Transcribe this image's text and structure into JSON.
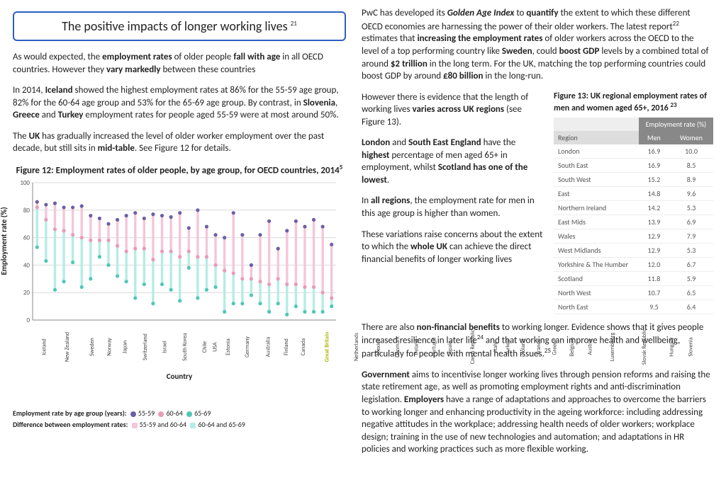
{
  "page_title": "The positive impacts of longer working lives",
  "title_sup": "21",
  "left_paras": {
    "p1": "As would expected, the <b>employment rates</b> of older people <b>fall with age</b> in all OECD countries.  However they <b>vary markedly</b> between these countries",
    "p2": "In 2014, <b>Iceland</b> showed the highest employment rates at 86% for the 55-59 age group, 82% for the 60-64 age group and 53% for the 65-69 age group.  By contrast, in <b>Slovenia</b>, <b>Greece</b> and <b>Turkey</b> employment rates for people aged 55-59 were at most  around 50%.",
    "p3": "The <b>UK</b> has gradually increased the level of older worker employment over the past decade, but still sits in <b>mid-table</b>. See Figure 12 for details."
  },
  "figure12": {
    "title": "Figure 12: Employment rates of older people, by age group, for OECD countries, 2014",
    "sup": "5",
    "ylabel": "Employment rate (%)",
    "xlabel": "Country",
    "ylim": [
      0,
      100
    ],
    "ytick_step": 20,
    "grid_color": "#d9d9d9",
    "axis_color": "#888",
    "colors": {
      "dot_55_59": "#6b5fa8",
      "dot_60_64": "#e89bb8",
      "dot_65_69": "#4fc7b5",
      "bar_55_60": "#f5c6d9",
      "bar_60_65": "#b4ede5"
    },
    "highlight_country": "Great Britain",
    "countries": [
      "Iceland",
      "New Zealand",
      "Sweden",
      "Norway",
      "Japan",
      "Switzerland",
      "Israel",
      "South Korea",
      "Chile",
      "USA",
      "Estonia",
      "Germany",
      "Australia",
      "Finland",
      "Canada",
      "Great Britain",
      "Netherlands",
      "Mexico",
      "Denmark",
      "Ireland",
      "Portugal",
      "Spain",
      "Czech Republic",
      "Italy",
      "Turkey",
      "Poland",
      "France",
      "Greece",
      "Belgium",
      "Austria",
      "Luxembourg",
      "Slovak Republic",
      "Hungary",
      "Slovenia"
    ],
    "series_55_59": [
      86,
      84,
      85,
      82,
      82,
      83,
      76,
      74,
      70,
      73,
      76,
      78,
      74,
      77,
      76,
      75,
      78,
      67,
      80,
      68,
      62,
      60,
      78,
      62,
      40,
      62,
      72,
      52,
      65,
      72,
      68,
      73,
      68,
      55
    ],
    "series_60_64": [
      82,
      73,
      66,
      65,
      62,
      60,
      58,
      58,
      58,
      54,
      50,
      52,
      52,
      44,
      50,
      50,
      46,
      50,
      46,
      46,
      40,
      36,
      34,
      30,
      30,
      28,
      26,
      30,
      26,
      26,
      24,
      24,
      20,
      16
    ],
    "series_65_69": [
      53,
      43,
      22,
      28,
      42,
      24,
      30,
      46,
      40,
      32,
      28,
      16,
      26,
      12,
      26,
      22,
      14,
      38,
      16,
      22,
      24,
      6,
      12,
      12,
      18,
      12,
      6,
      12,
      4,
      10,
      6,
      6,
      6,
      10
    ]
  },
  "legend": {
    "l1": "Employment rate by age group (years):",
    "g1": "55-59",
    "g2": "60-64",
    "g3": "65-69",
    "l2": "Difference between employment rates:",
    "d1": "55-59 and 60-64",
    "d2": "60-64 and 65-69"
  },
  "right_paras": {
    "p1": "PwC has developed its <b><i>Golden Age Index</i></b> to <b>quantify</b> the extent to which these different OECD economies are harnessing the power of their older workers.  The latest report<sup>22</sup> estimates that <b>increasing the employment rates</b> of older workers across the OECD to the level of a top performing country like <b>Sweden</b>, could <b>boost GDP</b> levels by a combined total of   around <b>$2 trillion</b> in the long term.   For the UK, matching the top performing countries could boost GDP by around <b>£80 billion</b> in the long-run.",
    "p2a": "However there is evidence that the length of working lives <b>varies across UK regions</b> (see Figure 13).",
    "p2b": "<b>London</b> and <b>South East England</b> have the <b>highest</b> percentage of men aged 65+ in employment, whilst <b>Scotland has one of the lowest</b>.",
    "p2c": "In <b>all regions</b>, the employment rate for men in this age group is higher than women.",
    "p2d": "These variations raise concerns about the extent to which the <b>whole UK</b> can achieve the direct financial benefits of longer working lives",
    "p3": "There are also <b>non-financial benefits</b> to working longer.  Evidence shows that it gives people increased resilience in later life<sup>24</sup> and that working can improve health and wellbeing, particularly for people with mental health issues.<sup>25</sup>",
    "p4": "<b>Government</b> aims to incentivise longer working lives through pension reforms and raising the state retirement age, as well as promoting employment rights and anti-discrimination legislation.  <b>Employers</b> have a range of adaptations and approaches to overcome the barriers to working longer and enhancing productivity in the ageing workforce:  including addressing negative attitudes in the workplace; addressing health needs of older workers; workplace design; training in the use of new technologies and automation; and adaptations in HR policies and working practices such as more flexible working."
  },
  "figure13": {
    "title": "Figure 13: UK regional employment rates of men and women aged 65+, 2016",
    "sup": "23",
    "header_group": "Employment rate (%)",
    "cols": [
      "Region",
      "Men",
      "Women"
    ],
    "rows": [
      [
        "London",
        "16.9",
        "10.0"
      ],
      [
        "South East",
        "16.9",
        "8.5"
      ],
      [
        "South West",
        "15.2",
        "8.9"
      ],
      [
        "East",
        "14.8",
        "9.6"
      ],
      [
        "Northern Ireland",
        "14.2",
        "5.3"
      ],
      [
        "East Mids",
        "13.9",
        "6.9"
      ],
      [
        "Wales",
        "12.9",
        "7.9"
      ],
      [
        "West Midlands",
        "12.9",
        "5.3"
      ],
      [
        "Yorkshire & The Humber",
        "12.0",
        "6.7"
      ],
      [
        "Scotland",
        "11.8",
        "5.9"
      ],
      [
        "North West",
        "10.7",
        "6.5"
      ],
      [
        "North East",
        "9.5",
        "6.4"
      ]
    ]
  }
}
